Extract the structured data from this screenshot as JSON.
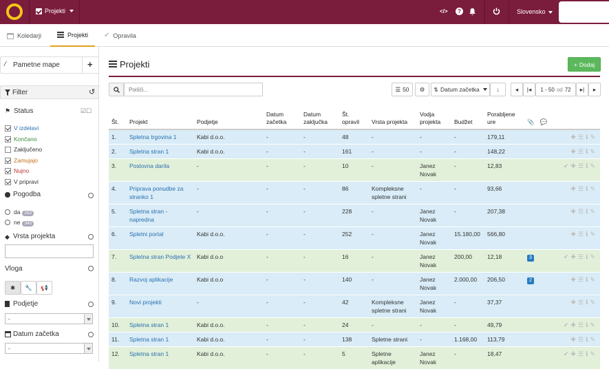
{
  "topbar": {
    "projects_menu": "Projekti",
    "code_icon": "</>",
    "help_icon": "?",
    "language": "Slovensko"
  },
  "tabs": [
    {
      "label": "Koledarji"
    },
    {
      "label": "Projekti"
    },
    {
      "label": "Opravila"
    }
  ],
  "sidebar": {
    "smart_folders": "Pametne mape",
    "add_symbol": "+",
    "filter": "Filter",
    "status": {
      "title": "Status",
      "items": [
        {
          "label": "V izdelavi",
          "checked": true,
          "color": "#2a6fb0"
        },
        {
          "label": "Končano",
          "checked": true,
          "color": "#3a8a3a"
        },
        {
          "label": "Zaključeno",
          "checked": false,
          "color": "#333333"
        },
        {
          "label": "Zamujajo",
          "checked": true,
          "color": "#c07020"
        },
        {
          "label": "Nujno",
          "checked": true,
          "color": "#c03030"
        },
        {
          "label": "V pripravi",
          "checked": true,
          "color": "#333333"
        }
      ]
    },
    "agreement": {
      "title": "Pogodba",
      "yes": "da",
      "yes_count": "252",
      "no": "ne",
      "no_count": "342"
    },
    "project_type": {
      "title": "Vrsta projekta"
    },
    "role": {
      "title": "Vloga"
    },
    "company": {
      "title": "Podjetje",
      "value": "-"
    },
    "start_date": {
      "title": "Datum začetka",
      "value": "-"
    }
  },
  "main": {
    "title": "Projekti",
    "add_button": "Dodaj",
    "search_placeholder": "Poišči...",
    "page_size": "50",
    "sort_label": "Datum začetka",
    "range_start": "1 - 50",
    "range_of": "od",
    "range_total": "72",
    "columns": [
      "Št.",
      "Projekt",
      "Podjetje",
      "Datum začetka",
      "Datum zaključka",
      "Št. opravil",
      "Vrsta projekta",
      "Vodja projekta",
      "Budžet",
      "Porabljene ure"
    ],
    "rows": [
      {
        "num": "1.",
        "project": "Spletna trgovina 1",
        "company": "Kabi d.o.o.",
        "start": "-",
        "end": "-",
        "tasks": "48",
        "type": "-",
        "lead": "-",
        "budget": "-",
        "hours": "179,11",
        "att": "",
        "done": false,
        "row_color": "blue"
      },
      {
        "num": "2.",
        "project": "Spletna stran 1",
        "company": "Kabi d.o.o.",
        "start": "-",
        "end": "-",
        "tasks": "161",
        "type": "-",
        "lead": "-",
        "budget": "-",
        "hours": "148,22",
        "att": "",
        "done": false,
        "row_color": "blue"
      },
      {
        "num": "3.",
        "project": "Poslovna darila",
        "company": "-",
        "start": "-",
        "end": "-",
        "tasks": "10",
        "type": "-",
        "lead": "Janez Novak",
        "budget": "-",
        "hours": "12,83",
        "att": "",
        "done": true,
        "row_color": "green"
      },
      {
        "num": "4.",
        "project": "Priprava ponudbe za stranko 1",
        "company": "-",
        "start": "-",
        "end": "-",
        "tasks": "86",
        "type": "Kompleksne spletne strani",
        "lead": "-",
        "budget": "-",
        "hours": "93,66",
        "att": "",
        "done": false,
        "row_color": "blue"
      },
      {
        "num": "5.",
        "project": "Spletna stran - napredna",
        "company": "-",
        "start": "-",
        "end": "-",
        "tasks": "228",
        "type": "-",
        "lead": "Janez Novak",
        "budget": "-",
        "hours": "207,38",
        "att": "",
        "done": false,
        "row_color": "blue"
      },
      {
        "num": "6.",
        "project": "Spletni portal",
        "company": "Kabi d.o.o.",
        "start": "-",
        "end": "-",
        "tasks": "252",
        "type": "-",
        "lead": "Janez Novak",
        "budget": "15.180,00",
        "hours": "566,80",
        "att": "",
        "done": false,
        "row_color": "blue"
      },
      {
        "num": "7.",
        "project": "Spletna stran Podjete X",
        "company": "Kabi d.o.o",
        "start": "-",
        "end": "-",
        "tasks": "16",
        "type": "-",
        "lead": "Janez Novak",
        "budget": "200,00",
        "hours": "12,18",
        "att": "3",
        "done": true,
        "row_color": "green"
      },
      {
        "num": "8.",
        "project": "Razvoj aplikacije",
        "company": "Kabi d.o.o",
        "start": "-",
        "end": "-",
        "tasks": "140",
        "type": "-",
        "lead": "Janez Novak",
        "budget": "2.000,00",
        "hours": "206,50",
        "att": "2",
        "done": false,
        "row_color": "blue"
      },
      {
        "num": "9.",
        "project": "Novi projekti",
        "company": "-",
        "start": "-",
        "end": "-",
        "tasks": "42",
        "type": "Kompleksne spletne strani",
        "lead": "Janez Novak",
        "budget": "-",
        "hours": "37,37",
        "att": "",
        "done": false,
        "row_color": "blue"
      },
      {
        "num": "10.",
        "project": "Spletna stran 1",
        "company": "Kabi d.o.o.",
        "start": "-",
        "end": "-",
        "tasks": "24",
        "type": "-",
        "lead": "-",
        "budget": "-",
        "hours": "49,79",
        "att": "",
        "done": true,
        "row_color": "green"
      },
      {
        "num": "11.",
        "project": "Spletna stran 1",
        "company": "Kabi d.o.o.",
        "start": "-",
        "end": "-",
        "tasks": "138",
        "type": "Spletne strani",
        "lead": "-",
        "budget": "1.168,00",
        "hours": "113,79",
        "att": "",
        "done": false,
        "row_color": "blue"
      },
      {
        "num": "12.",
        "project": "Spletna stran 1",
        "company": "Kabi d.o.o.",
        "start": "-",
        "end": "-",
        "tasks": "5",
        "type": "Spletne aplikacije",
        "lead": "Janez Novak",
        "budget": "-",
        "hours": "18,47",
        "att": "",
        "done": true,
        "row_color": "green"
      }
    ]
  }
}
